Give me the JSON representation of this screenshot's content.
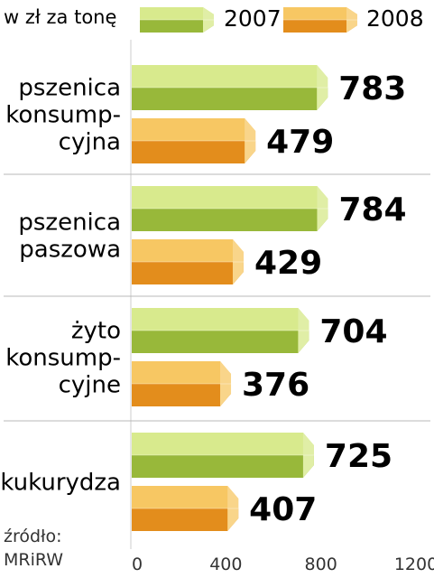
{
  "unit_label": "w zł za tonę",
  "source": {
    "line1": "źródło:",
    "line2": "MRiRW"
  },
  "colors": {
    "s2007": {
      "face": "#c7dd6c",
      "top": "#d8ea8d",
      "bottom": "#98b83a",
      "end": "#e0eea6"
    },
    "s2008": {
      "face": "#f3b23c",
      "top": "#f7c763",
      "bottom": "#e38d1c",
      "end": "#f9d58a"
    }
  },
  "chart_data": {
    "type": "bar",
    "orientation": "horizontal",
    "categories": [
      [
        "pszenica",
        "konsump-",
        "cyjna"
      ],
      [
        "pszenica",
        "paszowa"
      ],
      [
        "żyto",
        "konsump-",
        "cyjne"
      ],
      [
        "kukurydza"
      ]
    ],
    "series": [
      {
        "name": "2007",
        "values": [
          783,
          784,
          704,
          725
        ]
      },
      {
        "name": "2008",
        "values": [
          479,
          429,
          376,
          407
        ]
      }
    ],
    "xlim": [
      0,
      1200
    ],
    "xticks": [
      0,
      400,
      800,
      1200
    ],
    "legend_position": "top"
  }
}
